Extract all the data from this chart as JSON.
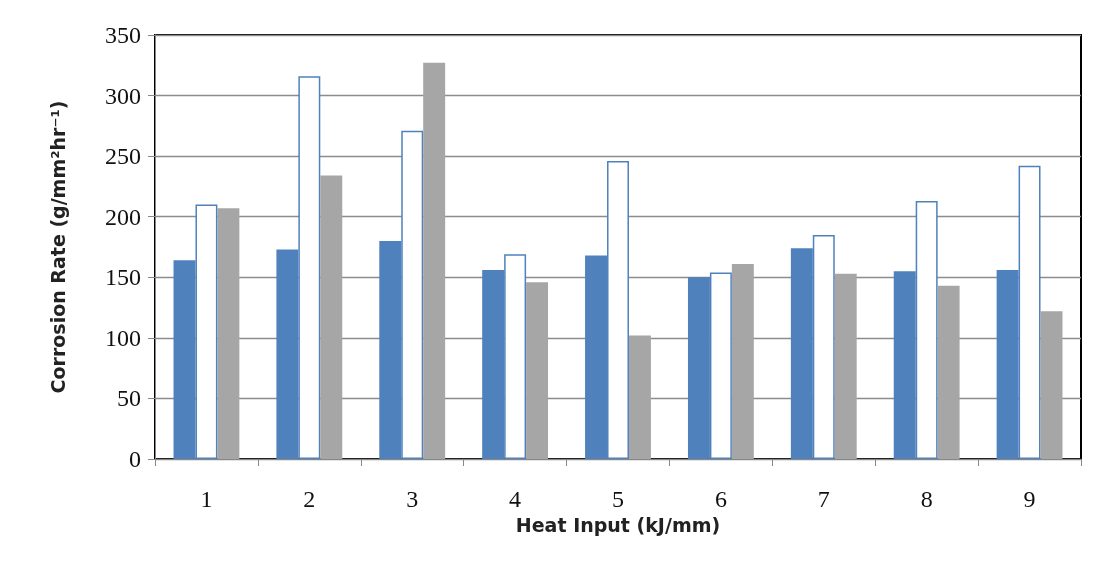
{
  "chart_data": {
    "type": "bar",
    "xlabel": "Heat Input (kJ/mm)",
    "ylabel": "Corrosion Rate (g/mm²hr⁻¹)",
    "categories": [
      "1",
      "2",
      "3",
      "4",
      "5",
      "6",
      "7",
      "8",
      "9"
    ],
    "series": [
      {
        "color": "#4f81bd",
        "values": [
          164,
          173,
          180,
          156,
          168,
          150,
          174,
          155,
          156
        ]
      },
      {
        "color": "#ffffff",
        "values": [
          210,
          316,
          271,
          169,
          246,
          154,
          185,
          213,
          242
        ]
      },
      {
        "color": "#a6a6a6",
        "values": [
          207,
          234,
          327,
          146,
          102,
          161,
          153,
          143,
          122
        ]
      }
    ],
    "ylim": [
      0,
      350
    ],
    "yticks": [
      0,
      50,
      100,
      150,
      200,
      250,
      300,
      350
    ],
    "grid": "y"
  }
}
